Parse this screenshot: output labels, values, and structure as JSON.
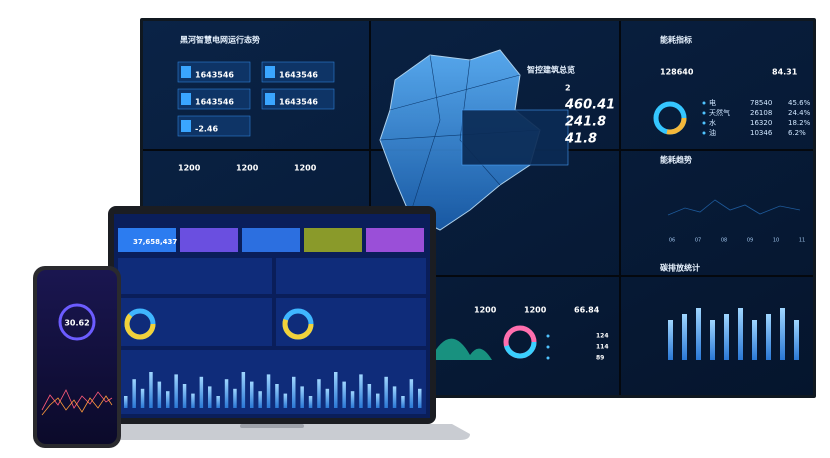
{
  "wall": {
    "title": "黑河智慧电网运行态势",
    "left_panel": {
      "stats": [
        "1643546",
        "1643546",
        "1643546",
        "1643546",
        "-2.46"
      ],
      "bottom_values": [
        "1200",
        "1200",
        "1200"
      ]
    },
    "center": {
      "title": "智控建筑总览",
      "metrics": [
        "2",
        "460.41",
        "241.8",
        "41.8"
      ]
    },
    "right_top": {
      "title": "能耗指标",
      "values": [
        "128640",
        "84.31"
      ],
      "rows": [
        {
          "label": "电",
          "value": "78540",
          "share": "45.6%"
        },
        {
          "label": "天然气",
          "value": "26108",
          "share": "24.4%"
        },
        {
          "label": "水",
          "value": "16320",
          "share": "18.2%"
        },
        {
          "label": "油",
          "value": "10346",
          "share": "6.2%"
        }
      ]
    },
    "trend": {
      "title": "能耗趋势",
      "ticks": [
        "06",
        "07",
        "08",
        "09",
        "10",
        "11"
      ]
    },
    "carbon": {
      "title": "碳排放统计"
    },
    "bottom_center": {
      "values": [
        "1200",
        "1200",
        "66.84"
      ],
      "ranks": [
        "124",
        "114",
        "89"
      ]
    }
  },
  "laptop": {
    "kpi": "37,658,437"
  },
  "phone": {
    "value": "30.62"
  }
}
